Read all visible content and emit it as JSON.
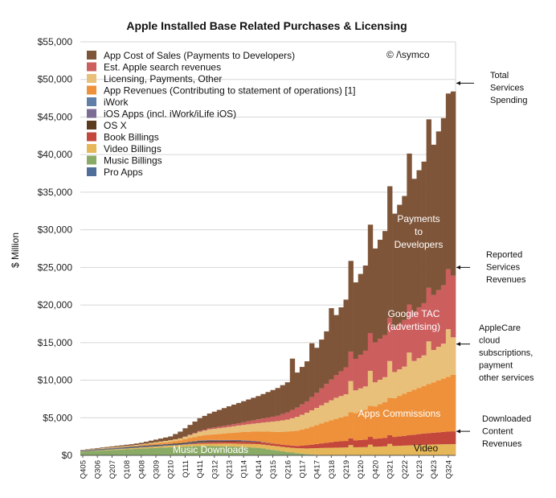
{
  "chart_data": {
    "type": "stacked-bar",
    "title": "Apple Installed Base Related Purchases & Licensing",
    "ylabel": "$ Million",
    "xlabel": "",
    "ylim": [
      0,
      55000
    ],
    "yticks": [
      "$0",
      "$5,000",
      "$10,000",
      "$15,000",
      "$20,000",
      "$25,000",
      "$30,000",
      "$35,000",
      "$40,000",
      "$45,000",
      "$50,000",
      "$55,000"
    ],
    "ytick_values": [
      0,
      5000,
      10000,
      15000,
      20000,
      25000,
      30000,
      35000,
      40000,
      45000,
      50000,
      55000
    ],
    "xtick_labels": [
      "Q405",
      "Q306",
      "Q207",
      "Q108",
      "Q408",
      "Q309",
      "Q210",
      "Q111",
      "Q411",
      "Q312",
      "Q213",
      "Q114",
      "Q414",
      "Q315",
      "Q216",
      "Q117",
      "Q417",
      "Q318",
      "Q219",
      "Q120",
      "Q420",
      "Q321",
      "Q222",
      "Q123",
      "Q423",
      "Q324"
    ],
    "copyright": "© /\\symco",
    "legend_placement": "top-left",
    "legend": [
      {
        "label": "App Cost of Sales (Payments to Developers)",
        "color": "#7f5539"
      },
      {
        "label": "Est. Apple search  revenues",
        "color": "#cc5e5e"
      },
      {
        "label": "Licensing, Payments, Other",
        "color": "#e8c07a"
      },
      {
        "label": "App Revenues (Contributing to statement of operations) [1]",
        "color": "#ee913a"
      },
      {
        "label": "iWork",
        "color": "#5f7fa8"
      },
      {
        "label": "iOS Apps (incl. iWork/iLife iOS)",
        "color": "#7c6b94"
      },
      {
        "label": "OS X",
        "color": "#5c3b1f"
      },
      {
        "label": "Book Billings",
        "color": "#c4473c"
      },
      {
        "label": "Video Billings",
        "color": "#e6b759"
      },
      {
        "label": "Music Billings",
        "color": "#8aab66"
      },
      {
        "label": "Pro Apps",
        "color": "#4f6e99"
      }
    ],
    "inside_labels": {
      "payments": [
        "Payments",
        "to",
        "Developers"
      ],
      "google": [
        "Google TAC",
        "(advertising)"
      ],
      "apps": "Apps Commissions",
      "music": "Music Downloads",
      "video": "Video"
    },
    "annotations": [
      {
        "lines": [
          "Total",
          "Services",
          "Spending"
        ],
        "value": 49500
      },
      {
        "lines": [
          "Reported",
          "Services",
          "Revenues"
        ],
        "value": 25000
      },
      {
        "lines": [
          "AppleCare",
          "cloud",
          "subscriptions,",
          "payment",
          "other services"
        ],
        "value": 14800
      },
      {
        "lines": [
          "Downloaded",
          "Content",
          "Revenues"
        ],
        "value": 3200
      }
    ],
    "series_order": [
      "music",
      "video",
      "book",
      "proapps",
      "osx",
      "iosapps",
      "iwork",
      "apprev",
      "licensing",
      "search",
      "payments"
    ],
    "series_colors": {
      "music": "#8aab66",
      "video": "#e6b759",
      "book": "#c4473c",
      "proapps": "#4f6e99",
      "osx": "#5c3b1f",
      "iosapps": "#7c6b94",
      "iwork": "#5f7fa8",
      "apprev": "#ee913a",
      "licensing": "#e8c07a",
      "search": "#cc5e5e",
      "payments": "#7f5539"
    },
    "quarters_count": 77,
    "keypoints": {
      "music": [
        [
          0,
          500
        ],
        [
          12,
          900
        ],
        [
          24,
          1250
        ],
        [
          30,
          1200
        ],
        [
          36,
          1000
        ],
        [
          42,
          450
        ],
        [
          46,
          150
        ],
        [
          50,
          0
        ],
        [
          76,
          0
        ]
      ],
      "video": [
        [
          0,
          30
        ],
        [
          12,
          150
        ],
        [
          24,
          300
        ],
        [
          30,
          380
        ],
        [
          36,
          500
        ],
        [
          44,
          650
        ],
        [
          50,
          1000
        ],
        [
          58,
          1100
        ],
        [
          66,
          1300
        ],
        [
          72,
          1450
        ],
        [
          76,
          1500
        ]
      ],
      "book": [
        [
          0,
          0
        ],
        [
          20,
          0
        ],
        [
          26,
          200
        ],
        [
          34,
          260
        ],
        [
          44,
          300
        ],
        [
          52,
          800
        ],
        [
          58,
          1000
        ],
        [
          64,
          1200
        ],
        [
          70,
          1500
        ],
        [
          76,
          1700
        ]
      ],
      "proapps": [
        [
          0,
          80
        ],
        [
          16,
          110
        ],
        [
          24,
          80
        ],
        [
          30,
          0
        ],
        [
          76,
          0
        ]
      ],
      "osx": [
        [
          0,
          40
        ],
        [
          16,
          100
        ],
        [
          24,
          150
        ],
        [
          32,
          120
        ],
        [
          40,
          0
        ],
        [
          76,
          0
        ]
      ],
      "iosapps": [
        [
          0,
          0
        ],
        [
          20,
          0
        ],
        [
          26,
          80
        ],
        [
          32,
          120
        ],
        [
          40,
          0
        ],
        [
          76,
          0
        ]
      ],
      "iwork": [
        [
          0,
          20
        ],
        [
          20,
          40
        ],
        [
          30,
          0
        ],
        [
          76,
          0
        ]
      ],
      "apprev": [
        [
          0,
          0
        ],
        [
          10,
          50
        ],
        [
          18,
          250
        ],
        [
          24,
          600
        ],
        [
          30,
          900
        ],
        [
          36,
          1300
        ],
        [
          42,
          1800
        ],
        [
          48,
          2500
        ],
        [
          54,
          3300
        ],
        [
          60,
          4300
        ],
        [
          66,
          5600
        ],
        [
          72,
          6700
        ],
        [
          76,
          7500
        ]
      ],
      "licensing": [
        [
          0,
          50
        ],
        [
          12,
          100
        ],
        [
          20,
          250
        ],
        [
          26,
          700
        ],
        [
          32,
          900
        ],
        [
          36,
          1100
        ],
        [
          42,
          1600
        ],
        [
          48,
          2300
        ],
        [
          52,
          2800
        ],
        [
          56,
          3000
        ],
        [
          60,
          3200
        ],
        [
          66,
          3600
        ],
        [
          72,
          4300
        ],
        [
          76,
          5000
        ]
      ],
      "search": [
        [
          0,
          0
        ],
        [
          20,
          0
        ],
        [
          24,
          100
        ],
        [
          32,
          300
        ],
        [
          40,
          700
        ],
        [
          46,
          1500
        ],
        [
          52,
          3000
        ],
        [
          56,
          4200
        ],
        [
          60,
          5300
        ],
        [
          66,
          6200
        ],
        [
          72,
          7300
        ],
        [
          76,
          8200
        ]
      ],
      "payments": [
        [
          0,
          30
        ],
        [
          12,
          200
        ],
        [
          18,
          500
        ],
        [
          24,
          1700
        ],
        [
          30,
          2500
        ],
        [
          36,
          3100
        ],
        [
          42,
          4000
        ],
        [
          48,
          6000
        ],
        [
          54,
          9000
        ],
        [
          60,
          12500
        ],
        [
          66,
          16500
        ],
        [
          72,
          20000
        ],
        [
          76,
          24500
        ]
      ]
    },
    "bumps": [
      {
        "series": "licensing",
        "index": 55,
        "add": 1200
      },
      {
        "series": "licensing",
        "index": 59,
        "add": 1500
      },
      {
        "series": "licensing",
        "index": 63,
        "add": 1500
      },
      {
        "series": "licensing",
        "index": 67,
        "add": 1500
      },
      {
        "series": "licensing",
        "index": 71,
        "add": 1500
      },
      {
        "series": "licensing",
        "index": 75,
        "add": 1500
      },
      {
        "series": "payments",
        "index": 43,
        "add": 2500
      },
      {
        "series": "payments",
        "index": 47,
        "add": 1500
      },
      {
        "series": "payments",
        "index": 51,
        "add": 2000
      },
      {
        "series": "payments",
        "index": 55,
        "add": 2500
      },
      {
        "series": "payments",
        "index": 59,
        "add": 2500
      },
      {
        "series": "payments",
        "index": 63,
        "add": 3000
      },
      {
        "series": "payments",
        "index": 67,
        "add": 3000
      },
      {
        "series": "payments",
        "index": 71,
        "add": 3000
      },
      {
        "series": "video",
        "index": 55,
        "add": 300
      },
      {
        "series": "video",
        "index": 59,
        "add": 300
      },
      {
        "series": "video",
        "index": 63,
        "add": 300
      }
    ]
  }
}
